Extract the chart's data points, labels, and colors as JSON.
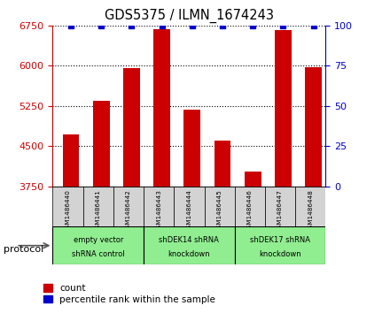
{
  "title": "GDS5375 / ILMN_1674243",
  "samples": [
    "GSM1486440",
    "GSM1486441",
    "GSM1486442",
    "GSM1486443",
    "GSM1486444",
    "GSM1486445",
    "GSM1486446",
    "GSM1486447",
    "GSM1486448"
  ],
  "counts": [
    4720,
    5350,
    5950,
    6680,
    5180,
    4600,
    4030,
    6660,
    5970
  ],
  "percentiles": [
    100,
    100,
    100,
    100,
    100,
    100,
    100,
    100,
    100
  ],
  "ylim_left": [
    3750,
    6750
  ],
  "ylim_right": [
    0,
    100
  ],
  "yticks_left": [
    3750,
    4500,
    5250,
    6000,
    6750
  ],
  "yticks_right": [
    0,
    25,
    50,
    75,
    100
  ],
  "groups": [
    {
      "label": "empty vector\nshRNA control",
      "start": 0,
      "end": 3
    },
    {
      "label": "shDEK14 shRNA\nknockdown",
      "start": 3,
      "end": 6
    },
    {
      "label": "shDEK17 shRNA\nknockdown",
      "start": 6,
      "end": 9
    }
  ],
  "bar_color": "#CC0000",
  "dot_color": "#0000CC",
  "left_axis_color": "#CC0000",
  "right_axis_color": "#0000CC",
  "label_area_color": "#d3d3d3",
  "group_color": "#90EE90",
  "xlim": [
    -0.6,
    8.4
  ]
}
